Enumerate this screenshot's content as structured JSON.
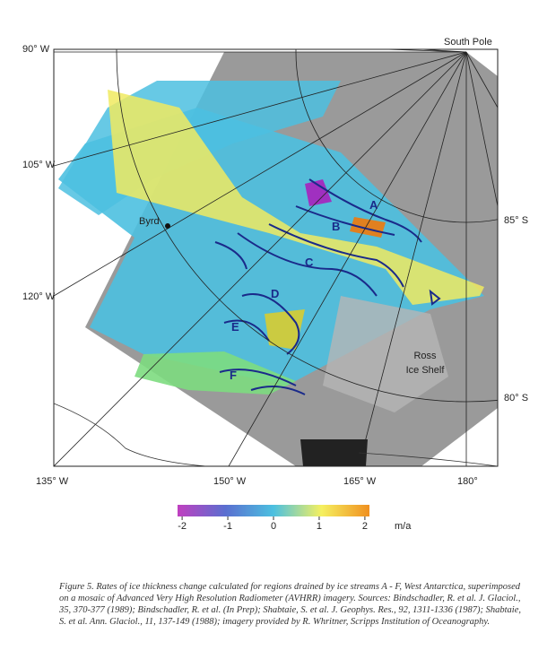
{
  "map": {
    "lon_labels": [
      "90° W",
      "105° W",
      "120° W",
      "135° W",
      "150° W",
      "165° W",
      "180°"
    ],
    "lat_labels": [
      "85° S",
      "80° S"
    ],
    "places": [
      "South Pole",
      "Byrd",
      "Ross",
      "Ice Shelf"
    ],
    "ice_streams": [
      "A",
      "B",
      "C",
      "D",
      "E",
      "F"
    ]
  },
  "colorbar": {
    "lim": [
      -2.1,
      2.1
    ],
    "ticks": [
      -2,
      -1,
      0,
      1,
      2
    ],
    "unit": "m/a",
    "colors": [
      "#c040c0",
      "#5a6fd0",
      "#4cc0e0",
      "#f5f060",
      "#f09020"
    ]
  },
  "caption": "Figure 5.   Rates of ice thickness change calculated for regions drained by ice streams A - F, West Antarctica, superimposed on a mosaic of Advanced Very High Resolution Radiometer (AVHRR) imagery.  Sources: Bindschadler, R. et al. J. Glaciol., 35, 370-377 (1989); Bindschadler, R. et al. (In Prep); Shabtaie, S. et al. J. Geophys. Res., 92, 1311-1336 (1987);  Shabtaie, S. et al. Ann. Glaciol., 11, 137-149 (1988); imagery provided by R. Whritner, Scripps Institution of Oceanography."
}
